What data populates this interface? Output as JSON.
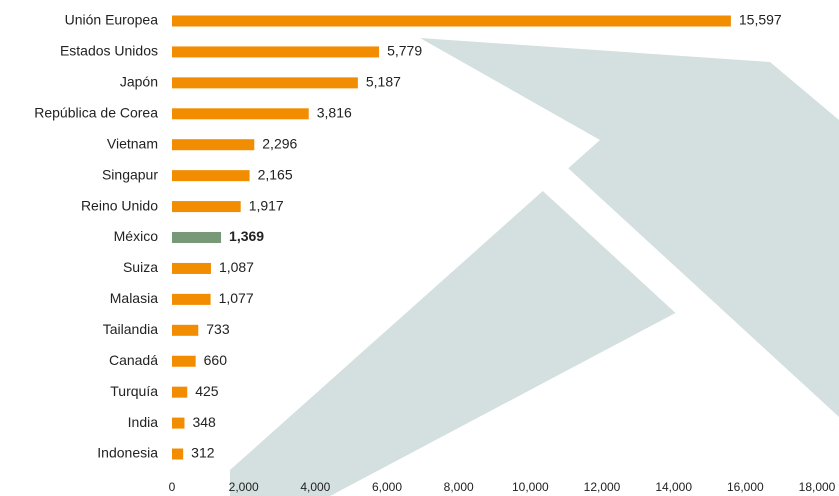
{
  "chart_data": {
    "type": "bar",
    "orientation": "horizontal",
    "categories": [
      "Unión Europea",
      "Estados Unidos",
      "Japón",
      "República de Corea",
      "Vietnam",
      "Singapur",
      "Reino Unido",
      "México",
      "Suiza",
      "Malasia",
      "Tailandia",
      "Canadá",
      "Turquía",
      "India",
      "Indonesia"
    ],
    "values": [
      15597,
      5779,
      5187,
      3816,
      2296,
      2165,
      1917,
      1369,
      1087,
      1077,
      733,
      660,
      425,
      348,
      312
    ],
    "value_labels": [
      "15,597",
      "5,779",
      "5,187",
      "3,816",
      "2,296",
      "2,165",
      "1,917",
      "1,369",
      "1,087",
      "1,077",
      "733",
      "660",
      "425",
      "348",
      "312"
    ],
    "color": "#f28c00",
    "colors": [
      "#f28c00",
      "#f28c00",
      "#f28c00",
      "#f28c00",
      "#f28c00",
      "#f28c00",
      "#f28c00",
      "#779977",
      "#f28c00",
      "#f28c00",
      "#f28c00",
      "#f28c00",
      "#f28c00",
      "#f28c00",
      "#f28c00"
    ],
    "xlim": [
      0,
      18000
    ],
    "xticks": [
      0,
      {
        "value": 2000,
        "label": "2,000"
      },
      {
        "value": 4000,
        "label": "4,000"
      },
      {
        "value": 6000,
        "label": "6,000"
      },
      {
        "value": 8000,
        "label": "8,000"
      },
      {
        "value": 10000,
        "label": "10,000"
      },
      {
        "value": 12000,
        "label": "12,000"
      },
      {
        "value": 14000,
        "label": "14,000"
      },
      {
        "value": 16000,
        "label": "16,000"
      },
      {
        "value": 18000,
        "label": "18,000"
      }
    ],
    "grid": false
  }
}
